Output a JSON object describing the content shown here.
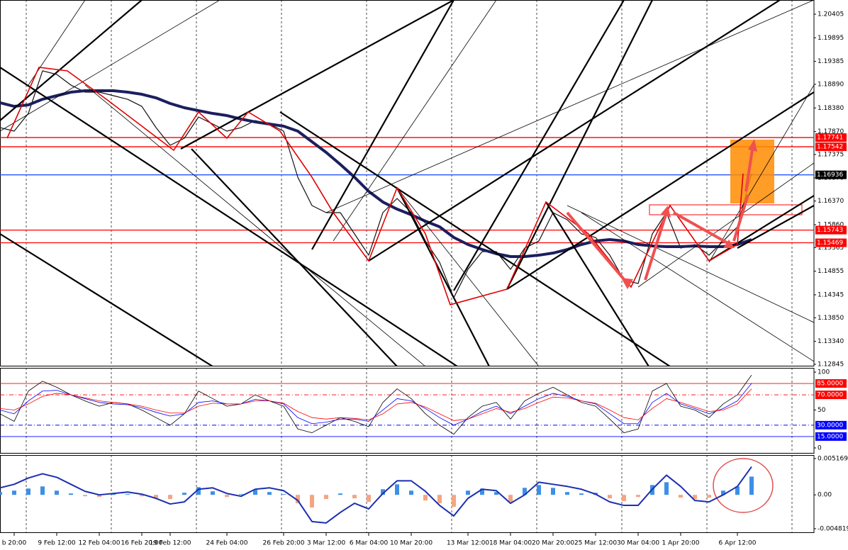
{
  "chart_data": [
    {
      "type": "line",
      "categories": [
        null,
        "b 20:00",
        null,
        null,
        "9 Feb 12:00",
        null,
        null,
        "12 Feb 04:00",
        null,
        null,
        "16 Feb 20:00",
        null,
        "19 Feb 12:00",
        null,
        null,
        null,
        "24 Feb 04:00",
        null,
        null,
        null,
        "26 Feb 20:00",
        null,
        null,
        "3 Mar 12:00",
        null,
        null,
        "6 Mar 04:00",
        null,
        null,
        "10 Mar 20:00",
        null,
        null,
        null,
        "13 Mar 12:00",
        null,
        null,
        "18 Mar 04:00",
        null,
        null,
        "20 Mar 20:00",
        null,
        null,
        "25 Mar 12:00",
        null,
        null,
        "30 Mar 04:00",
        null,
        null,
        "1 Apr 20:00",
        null,
        null,
        null,
        "6 Apr 12:00",
        null
      ],
      "series": [
        {
          "color": "#111111",
          "width": 1.2,
          "values": [
            1.17956,
            1.1788,
            1.18262,
            1.19181,
            1.19104,
            1.18874,
            1.18721,
            1.18721,
            1.18645,
            1.18568,
            1.18415,
            1.17956,
            1.17574,
            1.17727,
            1.18186,
            1.18033,
            1.1788,
            1.17956,
            1.18109,
            1.18033,
            1.1788,
            1.16885,
            1.16273,
            1.1612,
            1.1612,
            1.15661,
            1.15201,
            1.1612,
            1.16426,
            1.1612,
            1.15507,
            1.15048,
            1.14283,
            1.14895,
            1.15278,
            1.15278,
            1.14895,
            1.15354,
            1.15507,
            1.1612,
            1.15967,
            1.15661,
            1.15584,
            1.15201,
            1.14666,
            1.14589,
            1.15661,
            1.1612,
            1.15354,
            1.15431,
            1.15201,
            1.15507,
            1.15814,
            1.16961
          ]
        },
        {
          "color": "#1b1f5e",
          "width": 4,
          "values": [
            1.18492,
            1.18415,
            1.18446,
            1.18568,
            1.18645,
            1.18721,
            1.18752,
            1.18752,
            1.18752,
            1.18721,
            1.18675,
            1.18599,
            1.18477,
            1.18385,
            1.18323,
            1.18262,
            1.18216,
            1.1814,
            1.18079,
            1.18033,
            1.17987,
            1.1788,
            1.1765,
            1.17421,
            1.1716,
            1.16885,
            1.16579,
            1.16349,
            1.16196,
            1.16074,
            1.15936,
            1.15814,
            1.15584,
            1.15431,
            1.15324,
            1.15232,
            1.15171,
            1.15171,
            1.15201,
            1.15247,
            1.15324,
            1.15431,
            1.15507,
            1.15538,
            1.15507,
            1.15431,
            1.154,
            1.15385,
            1.15385,
            1.154,
            1.15385,
            1.15385,
            1.15431,
            1.15538
          ]
        }
      ],
      "ylim": [
        1.12799,
        1.20711
      ],
      "yticks": [
        1.20405,
        1.19895,
        1.19385,
        {
          "value": 1.1889,
          "label": "1.18890"
        },
        {
          "value": 1.1838,
          "label": "1.18380"
        },
        {
          "value": 1.1787,
          "label": "1.17870"
        },
        1.17375,
        {
          "value": 1.1687,
          "label": "1.16870"
        },
        {
          "value": 1.1637,
          "label": "1.16370"
        },
        {
          "value": 1.1586,
          "label": "1.15860"
        },
        1.15365,
        1.14855,
        1.14345,
        {
          "value": 1.1385,
          "label": "1.13850"
        },
        {
          "value": 1.1334,
          "label": "1.13340"
        },
        1.12845
      ],
      "levels": [
        {
          "value": 1.17741,
          "color": "#ff0000"
        },
        {
          "value": 1.17542,
          "color": "#ff0000"
        },
        {
          "value": 1.16936,
          "color": "#2255ff",
          "box_color": "#000000"
        },
        {
          "value": 1.15743,
          "color": "#ff0000"
        },
        {
          "value": 1.15469,
          "color": "#ff0000"
        }
      ]
    },
    {
      "type": "line",
      "series": [
        {
          "color": "#000000",
          "width": 0.8,
          "values": [
            45,
            35,
            75,
            88,
            80,
            70,
            62,
            55,
            60,
            58,
            50,
            40,
            30,
            45,
            75,
            65,
            55,
            58,
            70,
            62,
            55,
            25,
            20,
            30,
            40,
            35,
            28,
            60,
            78,
            65,
            45,
            30,
            18,
            40,
            55,
            60,
            38,
            62,
            72,
            80,
            70,
            60,
            55,
            38,
            20,
            25,
            75,
            85,
            55,
            50,
            40,
            58,
            70,
            96
          ]
        },
        {
          "color": "#0000ff",
          "width": 0.8,
          "values": [
            50,
            45,
            62,
            75,
            76,
            70,
            65,
            60,
            58,
            57,
            53,
            47,
            42,
            45,
            60,
            62,
            58,
            58,
            64,
            62,
            58,
            40,
            32,
            34,
            38,
            38,
            35,
            50,
            65,
            62,
            52,
            40,
            30,
            38,
            48,
            55,
            45,
            55,
            65,
            72,
            68,
            62,
            58,
            45,
            32,
            32,
            60,
            72,
            58,
            52,
            45,
            52,
            62,
            85
          ]
        },
        {
          "color": "#ff0000",
          "width": 0.8,
          "values": [
            52,
            50,
            58,
            68,
            72,
            70,
            66,
            62,
            60,
            58,
            55,
            50,
            46,
            46,
            55,
            59,
            58,
            58,
            62,
            62,
            59,
            48,
            40,
            38,
            40,
            39,
            37,
            45,
            58,
            60,
            54,
            45,
            36,
            38,
            45,
            52,
            47,
            52,
            60,
            67,
            66,
            62,
            59,
            50,
            40,
            37,
            52,
            65,
            60,
            54,
            48,
            50,
            58,
            78
          ]
        }
      ],
      "ylim": [
        -7.5,
        105.6
      ],
      "yticks": [
        0,
        50,
        100
      ],
      "levels": [
        {
          "value": 85,
          "label": "85.0000",
          "color": "#ff0000"
        },
        {
          "value": 70,
          "label": "70.0000",
          "color": "#ff0000",
          "dash": true
        },
        {
          "value": 30,
          "label": "30.0000",
          "color": "#0000ff",
          "dash": true
        },
        {
          "value": 15,
          "label": "15.0000",
          "color": "#0000ff"
        }
      ]
    },
    {
      "type": "combo",
      "series": [
        {
          "kind": "bar",
          "color": "#3d8fe6",
          "negative_color": "#f4a582",
          "values": [
            0.0004,
            0.0006,
            0.0009,
            0.0012,
            0.0006,
            0.0002,
            -0.0002,
            -0.0003,
            0.0002,
            0.0001,
            -0.0002,
            -0.0005,
            -0.0006,
            0.0003,
            0.0011,
            0.0005,
            -0.0003,
            0.0001,
            0.0007,
            0.0004,
            0.0001,
            -0.0012,
            -0.0018,
            -0.0006,
            0.0002,
            -0.0005,
            -0.001,
            0.0008,
            0.0015,
            0.0006,
            -0.0008,
            -0.0012,
            -0.0017,
            0.0006,
            0.0009,
            0.0004,
            -0.001,
            0.001,
            0.0014,
            0.001,
            0.0004,
            0.0002,
            0.0003,
            -0.0005,
            -0.0009,
            -0.0003,
            0.0014,
            0.0018,
            -0.0004,
            -0.0006,
            -0.0004,
            0.0006,
            0.0012,
            0.0026
          ]
        },
        {
          "kind": "line",
          "color": "#1b2fb0",
          "width": 2,
          "values": [
            0.001,
            0.0015,
            0.0024,
            0.003,
            0.0025,
            0.0015,
            0.0005,
            0,
            0.0002,
            0.0004,
            0.0001,
            -0.0005,
            -0.0013,
            -0.001,
            0.0008,
            0.001,
            0.0002,
            -0.0002,
            0.0008,
            0.001,
            0.0006,
            -0.0008,
            -0.0038,
            -0.004,
            -0.0025,
            -0.0012,
            -0.002,
            0.0002,
            0.002,
            0.002,
            0.0005,
            -0.0015,
            -0.003,
            -0.0005,
            0.0008,
            0.0006,
            -0.0012,
            0,
            0.0018,
            0.0015,
            0.0012,
            0.0008,
            0.0001,
            -0.001,
            -0.0015,
            -0.0015,
            0.0008,
            0.0028,
            0.0012,
            -0.0008,
            -0.001,
            0,
            0.0012,
            0.004
          ]
        }
      ],
      "ylim": [
        -0.00543,
        0.00567
      ],
      "yticks": [
        -0.0048199,
        {
          "value": 0,
          "label": "0.00"
        },
        0.0051695
      ]
    }
  ]
}
